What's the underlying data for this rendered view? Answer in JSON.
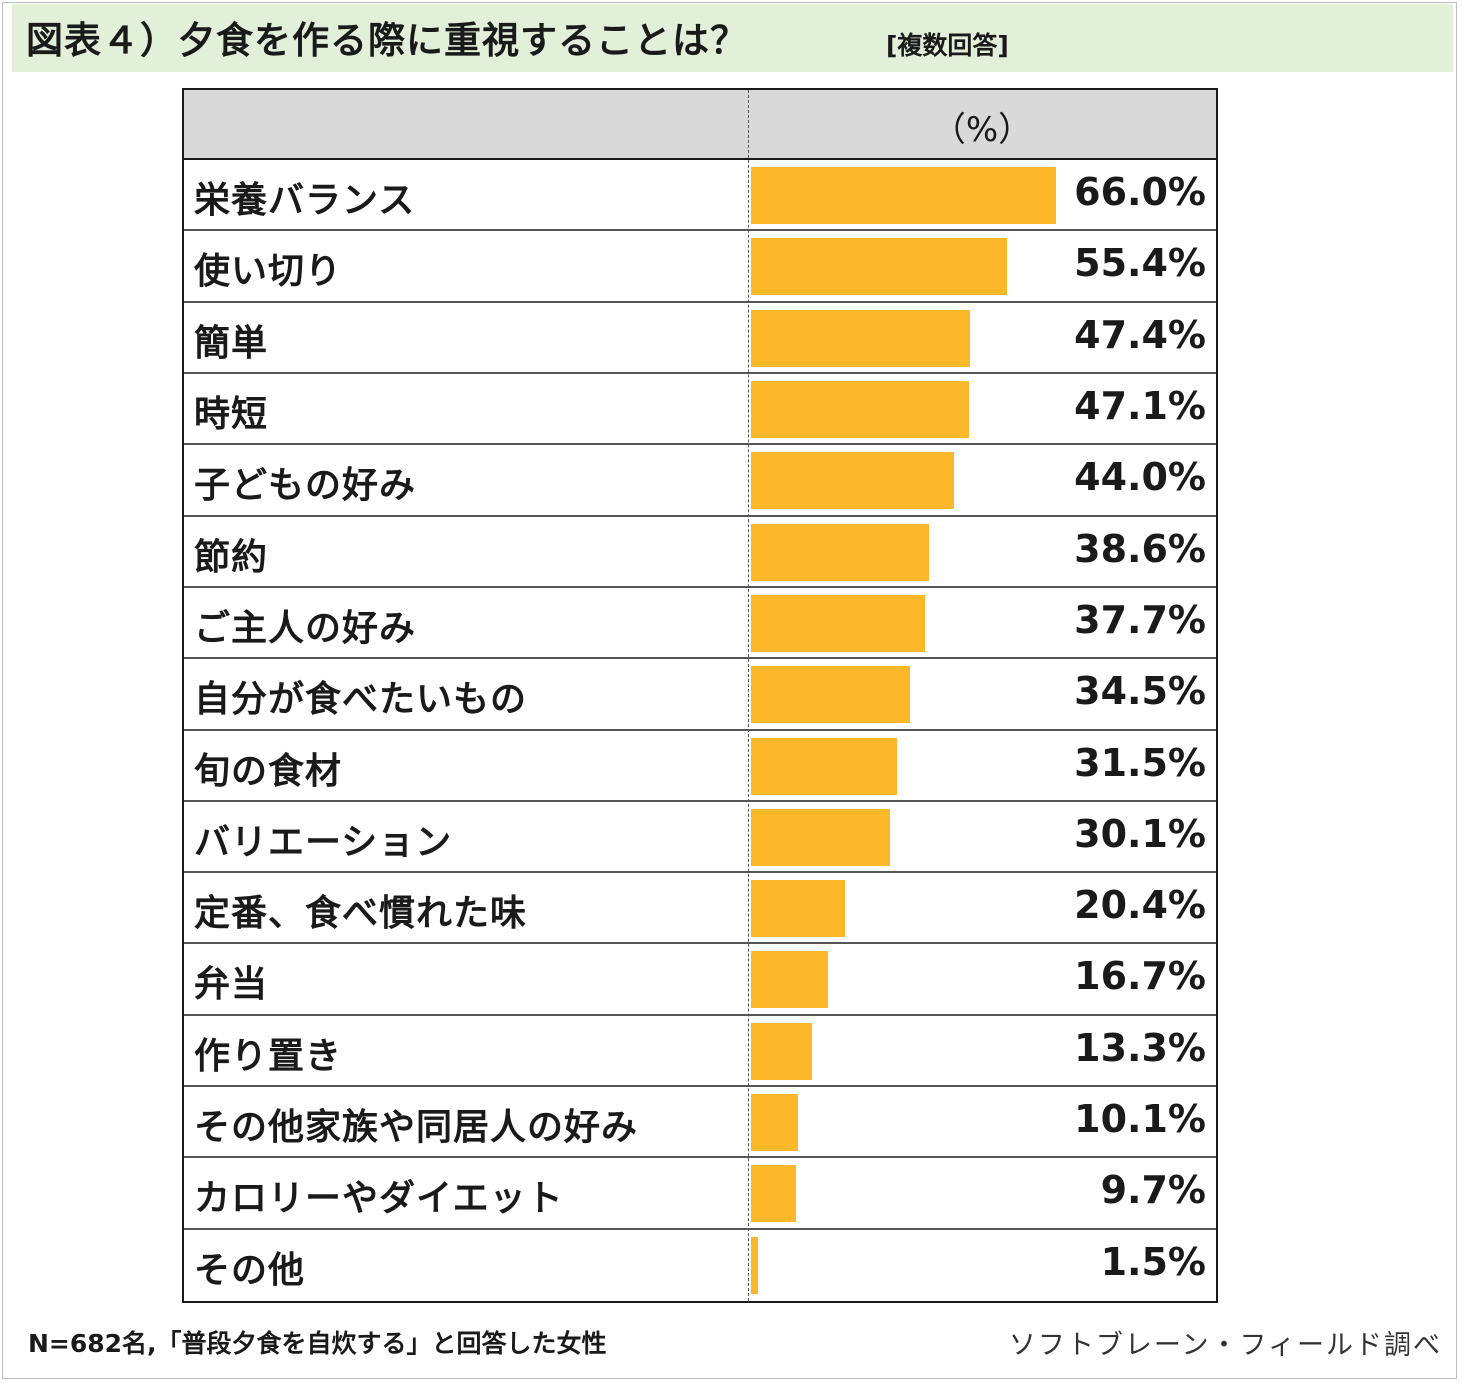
{
  "title": "図表４）夕食を作る際に重視することは？",
  "tag": "[複数回答]",
  "footnote": "N=682名,「普段夕食を自炊する」と回答した女性",
  "source": "ソフトブレーン・フィールド調べ",
  "colors": {
    "bar": "#fdb72b",
    "header_band": "#e2efd9",
    "table_header": "#d9d9d9"
  },
  "chart_data": {
    "type": "bar",
    "orientation": "horizontal",
    "unit_label": "（%）",
    "xlim": [
      0,
      100
    ],
    "categories": [
      "栄養バランス",
      "使い切り",
      "簡単",
      "時短",
      "子どもの好み",
      "節約",
      "ご主人の好み",
      "自分が食べたいもの",
      "旬の食材",
      "バリエーション",
      "定番、食べ慣れた味",
      "弁当",
      "作り置き",
      "その他家族や同居人の好み",
      "カロリーやダイエット",
      "その他"
    ],
    "values": [
      66.0,
      55.4,
      47.4,
      47.1,
      44.0,
      38.6,
      37.7,
      34.5,
      31.5,
      30.1,
      20.4,
      16.7,
      13.3,
      10.1,
      9.7,
      1.5
    ],
    "labels": [
      "66.0%",
      "55.4%",
      "47.4%",
      "47.1%",
      "44.0%",
      "38.6%",
      "37.7%",
      "34.5%",
      "31.5%",
      "30.1%",
      "20.4%",
      "16.7%",
      "13.3%",
      "10.1%",
      "9.7%",
      "1.5%"
    ]
  }
}
